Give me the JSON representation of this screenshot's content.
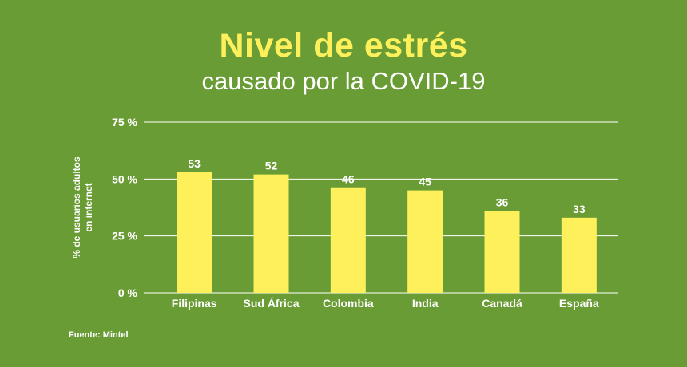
{
  "chart_data": {
    "type": "bar",
    "title": "Nivel de estrés",
    "subtitle": "causado por la COVID-19",
    "ylabel_line1": "% de usuarios adultos",
    "ylabel_line2": "en internet",
    "xlabel": "",
    "categories": [
      "Filipinas",
      "Sud África",
      "Colombia",
      "India",
      "Canadá",
      "España"
    ],
    "values": [
      53,
      52,
      46,
      45,
      36,
      33
    ],
    "ylim": [
      0,
      75
    ],
    "yticks": [
      0,
      25,
      50,
      75
    ],
    "ytick_labels": [
      "0 %",
      "25 %",
      "50 %",
      "75 %"
    ],
    "grid": true,
    "source": "Fuente: Mintel",
    "colors": {
      "background": "#6a9c35",
      "bar": "#fdf05a",
      "title": "#fdf05a",
      "text": "#ffffff",
      "grid": "#ffffff"
    }
  }
}
